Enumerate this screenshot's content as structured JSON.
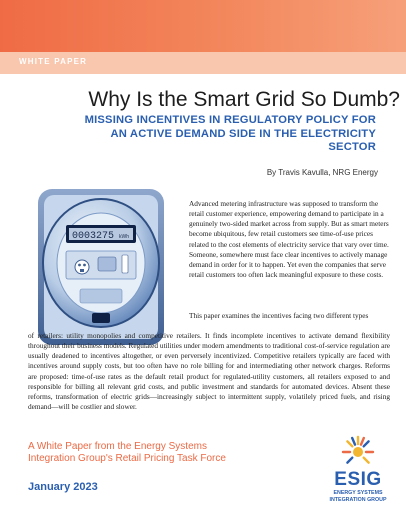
{
  "header": {
    "label": "WHITE PAPER"
  },
  "title": "Why Is the Smart Grid So Dumb?",
  "subtitle": "MISSING INCENTIVES IN REGULATORY POLICY FOR AN ACTIVE DEMAND SIDE IN THE ELECTRICITY SECTOR",
  "byline": "By Travis Kavulla, NRG Energy",
  "meter": {
    "display": "0003275",
    "unit": "kWh"
  },
  "body": {
    "para1": "Advanced metering infrastructure was supposed to transform the retail customer experience, empowering demand to participate in a genuinely two-sided market across from supply. But as smart meters become ubiquitous, few retail customers see time-of-use prices related to the cost elements of electricity service that vary over time. Someone, somewhere must face clear incentives to actively manage demand in order for it to happen. Yet even the companies that serve retail customers too often lack meaningful exposure to these costs.",
    "para2_top": "This paper examines the incentives facing two different types",
    "para2": "of retailers: utility monopolies and competitive retailers. It finds incomplete incentives to activate demand flexibility throughout their business models. Regulated utilities under modern amendments to traditional cost-of-service regulation are usually deadened to incentives altogether, or even perversely incentivized. Competitive retailers typically are faced with incentives around supply costs, but too often have no role billing for and intermediating other network charges. Reforms are proposed: time-of-use rates as the default retail product for regulated-utility customers, all retailers exposed to and responsible for billing all relevant grid costs, and public investment and standards for automated devices. Absent these reforms, transformation of electric grids—increasingly subject to intermittent supply, volatilely priced fuels, and rising demand—will be costlier and slower."
  },
  "footer": {
    "tagline": "A White Paper from the Energy Systems Integration Group's Retail Pricing Task Force",
    "date": "January 2023"
  },
  "logo": {
    "wordmark": "ESIG",
    "subtext": "ENERGY SYSTEMS INTEGRATION GROUP",
    "colors": {
      "blue": "#2a5fb0",
      "orange": "#ec6a45",
      "yellow": "#f2b630"
    }
  },
  "colors": {
    "accent_orange": "#ef6b45",
    "accent_blue": "#2a5fb0",
    "band_light": "#f9c6ae"
  }
}
